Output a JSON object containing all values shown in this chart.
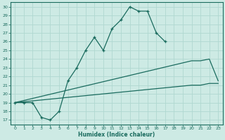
{
  "xlabel": "Humidex (Indice chaleur)",
  "background_color": "#cdeae4",
  "grid_color": "#b0d8d0",
  "line_color": "#1a6b5e",
  "xlim": [
    -0.5,
    23.5
  ],
  "ylim": [
    16.5,
    30.5
  ],
  "xticks": [
    0,
    1,
    2,
    3,
    4,
    5,
    6,
    7,
    8,
    9,
    10,
    11,
    12,
    13,
    14,
    15,
    16,
    17,
    18,
    19,
    20,
    21,
    22,
    23
  ],
  "yticks": [
    17,
    18,
    19,
    20,
    21,
    22,
    23,
    24,
    25,
    26,
    27,
    28,
    29,
    30
  ],
  "line1_x": [
    0,
    1,
    2,
    3,
    4,
    5,
    6,
    7,
    8,
    9,
    10,
    11,
    12,
    13,
    14,
    15,
    16,
    17
  ],
  "line1_y": [
    19,
    19,
    19,
    17.3,
    17,
    18,
    21.5,
    23,
    25,
    26.5,
    25,
    27.5,
    28.5,
    30,
    29.5,
    29.5,
    27,
    26
  ],
  "line2_x": [
    0,
    20,
    21,
    22,
    23
  ],
  "line2_y": [
    19,
    23.8,
    23.8,
    24,
    21.5
  ],
  "line3_x": [
    0,
    20,
    21,
    22,
    23
  ],
  "line3_y": [
    19,
    21,
    21,
    21.2,
    21.2
  ]
}
